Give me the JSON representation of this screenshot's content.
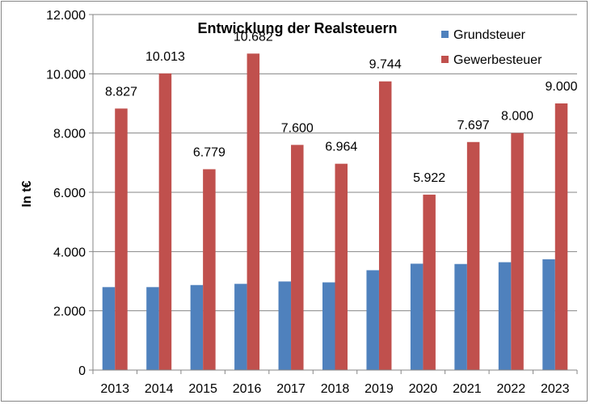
{
  "chart_data": {
    "type": "bar",
    "title": "Entwicklung der Realsteuern",
    "xlabel": "",
    "ylabel": "In t€",
    "ylim": [
      0,
      12000
    ],
    "yticks": [
      0,
      2000,
      4000,
      6000,
      8000,
      10000,
      12000
    ],
    "ytick_labels": [
      "0",
      "2.000",
      "4.000",
      "6.000",
      "8.000",
      "10.000",
      "12.000"
    ],
    "grid": "horizontal",
    "legend_position": "top-right",
    "categories": [
      "2013",
      "2014",
      "2015",
      "2016",
      "2017",
      "2018",
      "2019",
      "2020",
      "2021",
      "2022",
      "2023"
    ],
    "series": [
      {
        "name": "Grundsteuer",
        "color": "#4F81BD",
        "values": [
          2800,
          2800,
          2870,
          2910,
          2990,
          2960,
          3370,
          3590,
          3580,
          3640,
          3740
        ],
        "labels": null
      },
      {
        "name": "Gewerbesteuer",
        "color": "#C0504D",
        "values": [
          8827,
          10013,
          6779,
          10682,
          7600,
          6964,
          9744,
          5922,
          7697,
          8000,
          9000
        ],
        "labels": [
          "8.827",
          "10.013",
          "6.779",
          "10.682",
          "7.600",
          "6.964",
          "9.744",
          "5.922",
          "7.697",
          "8.000",
          "9.000"
        ]
      }
    ]
  }
}
